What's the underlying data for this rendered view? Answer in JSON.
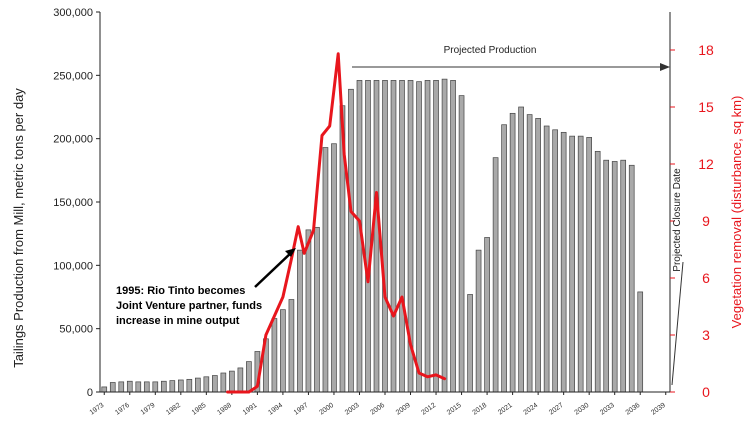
{
  "chart_data": {
    "type": "bar",
    "title": "",
    "ylabel": "Tailings Production from Mill, metric tons per day",
    "ylabel_right": "Vegetation removal (disturbance, sq km)",
    "ylim": [
      0,
      300000
    ],
    "ylim_right": [
      0,
      20
    ],
    "yticks": [
      "0",
      "50,000",
      "100,000",
      "150,000",
      "200,000",
      "250,000",
      "300,000"
    ],
    "yticks_right": [
      "0",
      "3",
      "6",
      "9",
      "12",
      "15",
      "18"
    ],
    "xtick_labels": [
      "1973",
      "1976",
      "1979",
      "1982",
      "1985",
      "1988",
      "1991",
      "1994",
      "1997",
      "2000",
      "2003",
      "2006",
      "2009",
      "2012",
      "2015",
      "2018",
      "2021",
      "2024",
      "2027",
      "2030",
      "2033",
      "2036",
      "2039"
    ],
    "grid": false,
    "legend": "none",
    "series": [
      {
        "kind": "bar",
        "color": "#9a9a9a",
        "x": [
          1973,
          1974,
          1975,
          1976,
          1977,
          1978,
          1979,
          1980,
          1981,
          1982,
          1983,
          1984,
          1985,
          1986,
          1987,
          1988,
          1989,
          1990,
          1991,
          1992,
          1993,
          1994,
          1995,
          1996,
          1997,
          1998,
          1999,
          2000,
          2001,
          2002,
          2003,
          2004,
          2005,
          2006,
          2007,
          2008,
          2009,
          2010,
          2011,
          2012,
          2013,
          2014,
          2015,
          2016,
          2017,
          2018,
          2019,
          2020,
          2021,
          2022,
          2023,
          2024,
          2025,
          2026,
          2027,
          2028,
          2029,
          2030,
          2031,
          2032,
          2033,
          2034,
          2035,
          2036,
          2037
        ],
        "values": [
          4000,
          7500,
          8000,
          8500,
          8000,
          8000,
          8000,
          8500,
          9000,
          9500,
          10000,
          11000,
          12000,
          13000,
          15000,
          16500,
          19000,
          24000,
          32000,
          42000,
          58000,
          65000,
          73000,
          112000,
          128000,
          130000,
          193000,
          196000,
          226000,
          239000,
          246000,
          246000,
          246000,
          246000,
          246000,
          246000,
          246000,
          245000,
          246000,
          246000,
          247000,
          246000,
          234000,
          77000,
          112000,
          122000,
          185000,
          211000,
          220000,
          225000,
          219000,
          216000,
          210000,
          207000,
          205000,
          202000,
          202000,
          201000,
          190000,
          183000,
          182000,
          183000,
          179000,
          79000,
          0
        ]
      },
      {
        "kind": "line",
        "color": "#e8161d",
        "x": [
          1987.5,
          1990,
          1991,
          1992,
          1993,
          1994,
          1995,
          1995.8,
          1996.5,
          1997.6,
          1998.6,
          1999.5,
          2000.5,
          2001.2,
          2002,
          2003,
          2004,
          2005,
          2006,
          2007,
          2008,
          2009,
          2010,
          2011,
          2012,
          2013
        ],
        "values": [
          0,
          0,
          0.3,
          3,
          4,
          5,
          7,
          8.7,
          7.3,
          8.5,
          13.5,
          14,
          17.8,
          12.5,
          9.5,
          9,
          5.8,
          10.5,
          5,
          4,
          5,
          2.5,
          1,
          0.8,
          0.9,
          0.7
        ]
      }
    ],
    "annotations": [
      {
        "text_lines": [
          "1995: Rio Tinto becomes",
          "Joint Venture partner, funds",
          "increase in mine output"
        ]
      },
      {
        "text": "Projected Production"
      },
      {
        "text": "Projected Closure Date"
      }
    ]
  }
}
